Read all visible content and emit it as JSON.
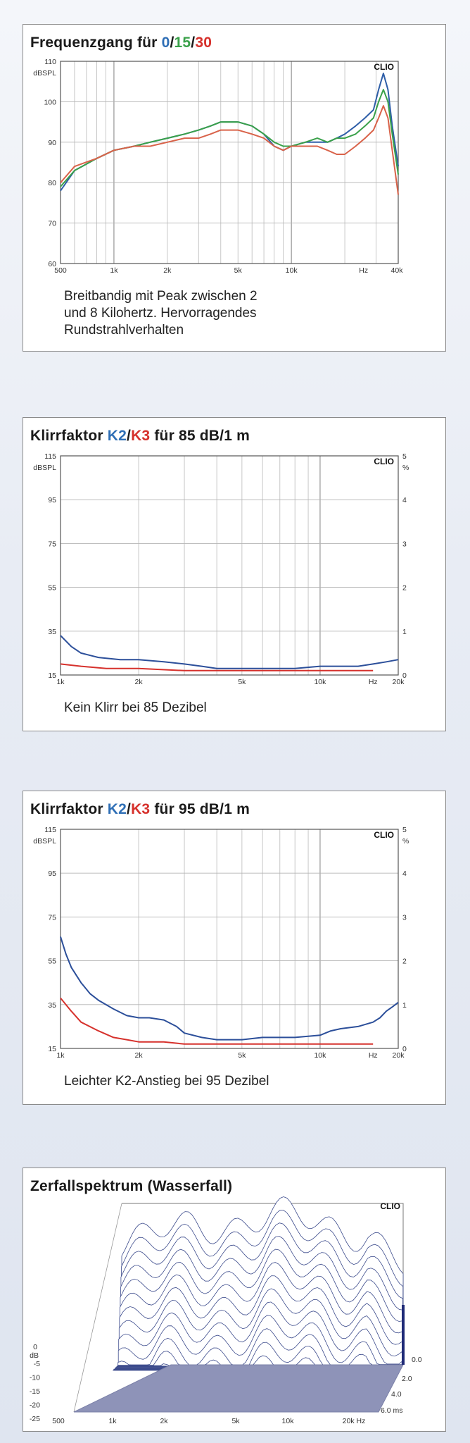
{
  "charts": {
    "freq": {
      "title_plain": "Frequenzgang für ",
      "title_a": "0",
      "title_sep1": "/",
      "title_b": "15",
      "title_sep2": "/",
      "title_c": "30",
      "brand": "CLIO",
      "unit": "dBSPL",
      "y_ticks": [
        "110",
        "100",
        "90",
        "80",
        "70",
        "60"
      ],
      "x_ticks": [
        "500",
        "1k",
        "2k",
        "5k",
        "10k",
        "Hz",
        "40k"
      ],
      "caption_lines": [
        "Breitbandig mit Peak zwischen 2",
        "und 8 Kilohertz. Hervorragendes",
        "Rundstrahlverhalten"
      ]
    },
    "k85": {
      "title_plain": "Klirrfaktor ",
      "title_a": "K2",
      "title_sep1": "/",
      "title_b": "K3",
      "title_rest": " für 85 dB/1 m",
      "brand": "CLIO",
      "unit": "dBSPL",
      "unit_right": "%",
      "y_ticks": [
        "115",
        "95",
        "75",
        "55",
        "35",
        "15"
      ],
      "y_ticks_right": [
        "5",
        "4",
        "3",
        "2",
        "1",
        "0"
      ],
      "x_ticks": [
        "1k",
        "2k",
        "5k",
        "10k",
        "Hz",
        "20k"
      ],
      "caption_lines": [
        "Kein Klirr bei 85 Dezibel"
      ]
    },
    "k95": {
      "title_plain": "Klirrfaktor ",
      "title_a": "K2",
      "title_sep1": "/",
      "title_b": "K3",
      "title_rest": " für 95 dB/1 m",
      "brand": "CLIO",
      "unit": "dBSPL",
      "unit_right": "%",
      "y_ticks": [
        "115",
        "95",
        "75",
        "55",
        "35",
        "15"
      ],
      "y_ticks_right": [
        "5",
        "4",
        "3",
        "2",
        "1",
        "0"
      ],
      "x_ticks": [
        "1k",
        "2k",
        "5k",
        "10k",
        "Hz",
        "20k"
      ],
      "caption_lines": [
        "Leichter K2-Anstieg bei 95 Dezibel"
      ]
    },
    "waterfall": {
      "title": "Zerfallspektrum (Wasserfall)",
      "brand": "CLIO",
      "y_label_top": "0",
      "y_unit": "dB",
      "y_ticks": [
        "-5",
        "-10",
        "-15",
        "-20",
        "-25"
      ],
      "x_ticks": [
        "500",
        "1k",
        "2k",
        "5k",
        "10k",
        "20k Hz"
      ],
      "time_ticks": [
        "0.0",
        "2.0",
        "4.0",
        "6.0 ms"
      ]
    }
  },
  "chart_data": [
    {
      "type": "line",
      "title": "Frequenzgang für 0/15/30",
      "ylabel": "dBSPL",
      "xscale": "log",
      "xlim": [
        500,
        40000
      ],
      "ylim": [
        60,
        110
      ],
      "grid": true,
      "series": [
        {
          "name": "0",
          "color": "#2f5fa8",
          "points": [
            [
              500,
              78
            ],
            [
              600,
              83
            ],
            [
              800,
              86
            ],
            [
              1000,
              88
            ],
            [
              1300,
              89
            ],
            [
              1600,
              90
            ],
            [
              2000,
              91
            ],
            [
              2500,
              92
            ],
            [
              3000,
              93
            ],
            [
              3500,
              94
            ],
            [
              4000,
              95
            ],
            [
              5000,
              95
            ],
            [
              6000,
              94
            ],
            [
              7000,
              92
            ],
            [
              8000,
              89
            ],
            [
              9000,
              88
            ],
            [
              10000,
              89
            ],
            [
              12000,
              90
            ],
            [
              14000,
              90
            ],
            [
              16000,
              90
            ],
            [
              18000,
              91
            ],
            [
              20000,
              92
            ],
            [
              23000,
              94
            ],
            [
              26000,
              96
            ],
            [
              29000,
              98
            ],
            [
              31000,
              103
            ],
            [
              33000,
              107
            ],
            [
              35000,
              103
            ],
            [
              37000,
              94
            ],
            [
              40000,
              84
            ]
          ]
        },
        {
          "name": "15",
          "color": "#3aa14a",
          "points": [
            [
              500,
              79
            ],
            [
              600,
              83
            ],
            [
              800,
              86
            ],
            [
              1000,
              88
            ],
            [
              1300,
              89
            ],
            [
              1600,
              90
            ],
            [
              2000,
              91
            ],
            [
              2500,
              92
            ],
            [
              3000,
              93
            ],
            [
              3500,
              94
            ],
            [
              4000,
              95
            ],
            [
              5000,
              95
            ],
            [
              6000,
              94
            ],
            [
              7000,
              92
            ],
            [
              8000,
              90
            ],
            [
              9000,
              89
            ],
            [
              10000,
              89
            ],
            [
              12000,
              90
            ],
            [
              14000,
              91
            ],
            [
              16000,
              90
            ],
            [
              18000,
              91
            ],
            [
              20000,
              91
            ],
            [
              23000,
              92
            ],
            [
              26000,
              94
            ],
            [
              29000,
              96
            ],
            [
              31000,
              100
            ],
            [
              33000,
              103
            ],
            [
              35000,
              100
            ],
            [
              37000,
              92
            ],
            [
              40000,
              82
            ]
          ]
        },
        {
          "name": "30",
          "color": "#d9634a",
          "points": [
            [
              500,
              80
            ],
            [
              600,
              84
            ],
            [
              800,
              86
            ],
            [
              1000,
              88
            ],
            [
              1300,
              89
            ],
            [
              1600,
              89
            ],
            [
              2000,
              90
            ],
            [
              2500,
              91
            ],
            [
              3000,
              91
            ],
            [
              3500,
              92
            ],
            [
              4000,
              93
            ],
            [
              5000,
              93
            ],
            [
              6000,
              92
            ],
            [
              7000,
              91
            ],
            [
              8000,
              89
            ],
            [
              9000,
              88
            ],
            [
              10000,
              89
            ],
            [
              12000,
              89
            ],
            [
              14000,
              89
            ],
            [
              16000,
              88
            ],
            [
              18000,
              87
            ],
            [
              20000,
              87
            ],
            [
              23000,
              89
            ],
            [
              26000,
              91
            ],
            [
              29000,
              93
            ],
            [
              31000,
              96
            ],
            [
              33000,
              99
            ],
            [
              35000,
              96
            ],
            [
              37000,
              88
            ],
            [
              40000,
              77
            ]
          ]
        }
      ]
    },
    {
      "type": "line",
      "title": "Klirrfaktor K2/K3 für 85 dB/1 m",
      "ylabel": "dBSPL",
      "xscale": "log",
      "xlim": [
        1000,
        20000
      ],
      "ylim": [
        15,
        115
      ],
      "grid": true,
      "series": [
        {
          "name": "K2",
          "color": "#2c4f9a",
          "points": [
            [
              1000,
              33
            ],
            [
              1100,
              28
            ],
            [
              1200,
              25
            ],
            [
              1400,
              23
            ],
            [
              1700,
              22
            ],
            [
              2000,
              22
            ],
            [
              2500,
              21
            ],
            [
              3000,
              20
            ],
            [
              3500,
              19
            ],
            [
              4000,
              18
            ],
            [
              5000,
              18
            ],
            [
              6000,
              18
            ],
            [
              7000,
              18
            ],
            [
              8000,
              18
            ],
            [
              10000,
              19
            ],
            [
              12000,
              19
            ],
            [
              14000,
              19
            ],
            [
              16000,
              20
            ],
            [
              18000,
              21
            ],
            [
              20000,
              22
            ]
          ]
        },
        {
          "name": "K3",
          "color": "#d6312c",
          "points": [
            [
              1000,
              20
            ],
            [
              1200,
              19
            ],
            [
              1500,
              18
            ],
            [
              2000,
              18
            ],
            [
              3000,
              17
            ],
            [
              4000,
              17
            ],
            [
              5000,
              17
            ],
            [
              7000,
              17
            ],
            [
              10000,
              17
            ],
            [
              14000,
              17
            ],
            [
              16000,
              17
            ]
          ]
        }
      ]
    },
    {
      "type": "line",
      "title": "Klirrfaktor K2/K3 für 95 dB/1 m",
      "ylabel": "dBSPL",
      "xscale": "log",
      "xlim": [
        1000,
        20000
      ],
      "ylim": [
        15,
        115
      ],
      "grid": true,
      "series": [
        {
          "name": "K2",
          "color": "#2c4f9a",
          "points": [
            [
              1000,
              66
            ],
            [
              1050,
              58
            ],
            [
              1100,
              52
            ],
            [
              1200,
              45
            ],
            [
              1300,
              40
            ],
            [
              1400,
              37
            ],
            [
              1600,
              33
            ],
            [
              1800,
              30
            ],
            [
              2000,
              29
            ],
            [
              2200,
              29
            ],
            [
              2500,
              28
            ],
            [
              2800,
              25
            ],
            [
              3000,
              22
            ],
            [
              3500,
              20
            ],
            [
              4000,
              19
            ],
            [
              5000,
              19
            ],
            [
              6000,
              20
            ],
            [
              7000,
              20
            ],
            [
              8000,
              20
            ],
            [
              10000,
              21
            ],
            [
              11000,
              23
            ],
            [
              12000,
              24
            ],
            [
              14000,
              25
            ],
            [
              16000,
              27
            ],
            [
              17000,
              29
            ],
            [
              18000,
              32
            ],
            [
              19000,
              34
            ],
            [
              20000,
              36
            ]
          ]
        },
        {
          "name": "K3",
          "color": "#d6312c",
          "points": [
            [
              1000,
              38
            ],
            [
              1100,
              32
            ],
            [
              1200,
              27
            ],
            [
              1400,
              23
            ],
            [
              1600,
              20
            ],
            [
              1800,
              19
            ],
            [
              2000,
              18
            ],
            [
              2500,
              18
            ],
            [
              3000,
              17
            ],
            [
              5000,
              17
            ],
            [
              8000,
              17
            ],
            [
              10000,
              17
            ],
            [
              14000,
              17
            ],
            [
              16000,
              17
            ]
          ]
        }
      ]
    },
    {
      "type": "area",
      "title": "Zerfallspektrum (Wasserfall)",
      "xscale": "log",
      "xlim": [
        500,
        20000
      ],
      "ylim": [
        -25,
        0
      ],
      "zlim": [
        0,
        6
      ],
      "ylabel": "dB",
      "zlabel": "ms",
      "grid": false
    }
  ]
}
